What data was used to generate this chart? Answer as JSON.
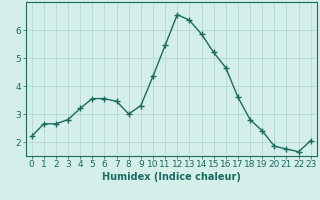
{
  "x": [
    0,
    1,
    2,
    3,
    4,
    5,
    6,
    7,
    8,
    9,
    10,
    11,
    12,
    13,
    14,
    15,
    16,
    17,
    18,
    19,
    20,
    21,
    22,
    23
  ],
  "y": [
    2.2,
    2.65,
    2.65,
    2.8,
    3.2,
    3.55,
    3.55,
    3.45,
    3.0,
    3.3,
    4.35,
    5.45,
    6.55,
    6.35,
    5.85,
    5.2,
    4.65,
    3.6,
    2.8,
    2.4,
    1.85,
    1.75,
    1.65,
    2.05
  ],
  "line_color": "#1a6b5e",
  "marker": "+",
  "marker_size": 4,
  "linewidth": 1.0,
  "xlabel": "Humidex (Indice chaleur)",
  "xlim": [
    -0.5,
    23.5
  ],
  "ylim": [
    1.5,
    7.0
  ],
  "yticks": [
    2,
    3,
    4,
    5,
    6
  ],
  "xticks": [
    0,
    1,
    2,
    3,
    4,
    5,
    6,
    7,
    8,
    9,
    10,
    11,
    12,
    13,
    14,
    15,
    16,
    17,
    18,
    19,
    20,
    21,
    22,
    23
  ],
  "xtick_labels": [
    "0",
    "1",
    "2",
    "3",
    "4",
    "5",
    "6",
    "7",
    "8",
    "9",
    "10",
    "11",
    "12",
    "13",
    "14",
    "15",
    "16",
    "17",
    "18",
    "19",
    "20",
    "21",
    "22",
    "23"
  ],
  "bg_color": "#d4eeea",
  "grid_color": "#b8d8d4",
  "xlabel_fontsize": 7,
  "tick_fontsize": 6.5
}
